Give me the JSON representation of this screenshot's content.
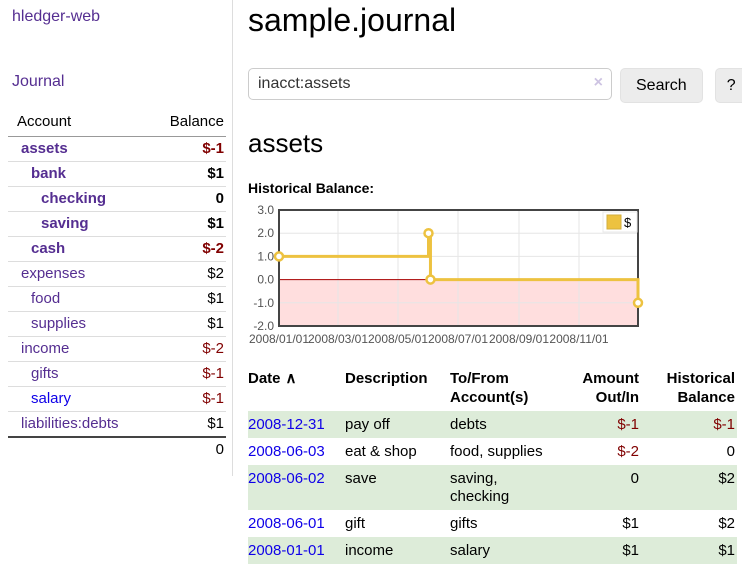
{
  "colors": {
    "link_purple": "#552e91",
    "link_blue": "#0f00e8",
    "negative_red": "#800000",
    "row_stripe_green": "#ddecd9",
    "button_gray": "#ececec",
    "chart_line_gold": "#edc240"
  },
  "sidebar": {
    "brand": "hledger-web",
    "nav": [
      {
        "label": "Journal"
      }
    ],
    "table": {
      "account_header": "Account",
      "balance_header": "Balance",
      "rows": [
        {
          "account": "assets",
          "balance": "$-1",
          "indent": 1,
          "bold": true,
          "negative": true,
          "unvisited": false
        },
        {
          "account": "bank",
          "balance": "$1",
          "indent": 2,
          "bold": true,
          "negative": false,
          "unvisited": false
        },
        {
          "account": "checking",
          "balance": "0",
          "indent": 3,
          "bold": true,
          "negative": false,
          "unvisited": false
        },
        {
          "account": "saving",
          "balance": "$1",
          "indent": 3,
          "bold": true,
          "negative": false,
          "unvisited": false
        },
        {
          "account": "cash",
          "balance": "$-2",
          "indent": 2,
          "bold": true,
          "negative": true,
          "unvisited": false
        },
        {
          "account": "expenses",
          "balance": "$2",
          "indent": 1,
          "bold": false,
          "negative": false,
          "unvisited": false
        },
        {
          "account": "food",
          "balance": "$1",
          "indent": 2,
          "bold": false,
          "negative": false,
          "unvisited": false
        },
        {
          "account": "supplies",
          "balance": "$1",
          "indent": 2,
          "bold": false,
          "negative": false,
          "unvisited": false
        },
        {
          "account": "income",
          "balance": "$-2",
          "indent": 1,
          "bold": false,
          "negative": true,
          "unvisited": false
        },
        {
          "account": "gifts",
          "balance": "$-1",
          "indent": 2,
          "bold": false,
          "negative": true,
          "unvisited": false
        },
        {
          "account": "salary",
          "balance": "$-1",
          "indent": 2,
          "bold": false,
          "negative": true,
          "unvisited": true
        },
        {
          "account": "liabilities:debts",
          "balance": "$1",
          "indent": 1,
          "bold": false,
          "negative": false,
          "unvisited": false
        }
      ],
      "total": "0"
    }
  },
  "header": {
    "title": "sample.journal"
  },
  "search": {
    "value": "inacct:assets",
    "clear_icon": "×",
    "button": "Search",
    "help_button": "?"
  },
  "register": {
    "heading": "assets",
    "chart_label": "Historical Balance:",
    "table": {
      "headers": [
        "Date",
        "Description",
        "To/From Account(s)",
        "Amount Out/In",
        "Historical Balance"
      ],
      "sort_arrow": "∧",
      "rows": [
        {
          "date": "2008-12-31",
          "description": "pay off",
          "accounts": "debts",
          "amount": "$-1",
          "amount_negative": true,
          "balance": "$-1",
          "balance_negative": true
        },
        {
          "date": "2008-06-03",
          "description": "eat & shop",
          "accounts": "food, supplies",
          "amount": "$-2",
          "amount_negative": true,
          "balance": "0",
          "balance_negative": false
        },
        {
          "date": "2008-06-02",
          "description": "save",
          "accounts": "saving, checking",
          "amount": "0",
          "amount_negative": false,
          "balance": "$2",
          "balance_negative": false
        },
        {
          "date": "2008-06-01",
          "description": "gift",
          "accounts": "gifts",
          "amount": "$1",
          "amount_negative": false,
          "balance": "$2",
          "balance_negative": false
        },
        {
          "date": "2008-01-01",
          "description": "income",
          "accounts": "salary",
          "amount": "$1",
          "amount_negative": false,
          "balance": "$1",
          "balance_negative": false
        }
      ]
    }
  },
  "chart_data": {
    "type": "line",
    "title": "Historical Balance:",
    "step": true,
    "series": [
      {
        "name": "$",
        "color": "#edc240",
        "points": [
          [
            "2008-01-01",
            1
          ],
          [
            "2008-06-01",
            2
          ],
          [
            "2008-06-03",
            0
          ],
          [
            "2008-12-31",
            -1
          ]
        ]
      }
    ],
    "xlim": [
      "2008-01-01",
      "2008-12-31"
    ],
    "ylim": [
      -2,
      3
    ],
    "x_ticks": [
      "2008/01/01",
      "2008/03/01",
      "2008/05/01",
      "2008/07/01",
      "2008/09/01",
      "2008/11/01"
    ],
    "y_ticks": [
      3.0,
      2.0,
      1.0,
      0.0,
      -1.0,
      -2.0
    ],
    "grid": true,
    "border_color": "#444444",
    "grid_color": "#e6e6e6",
    "tick_color": "#545454",
    "negative_region_color": "#ffdede",
    "zero_line_color": "#aa0000",
    "legend": {
      "label": "$",
      "position": "top-right"
    }
  }
}
